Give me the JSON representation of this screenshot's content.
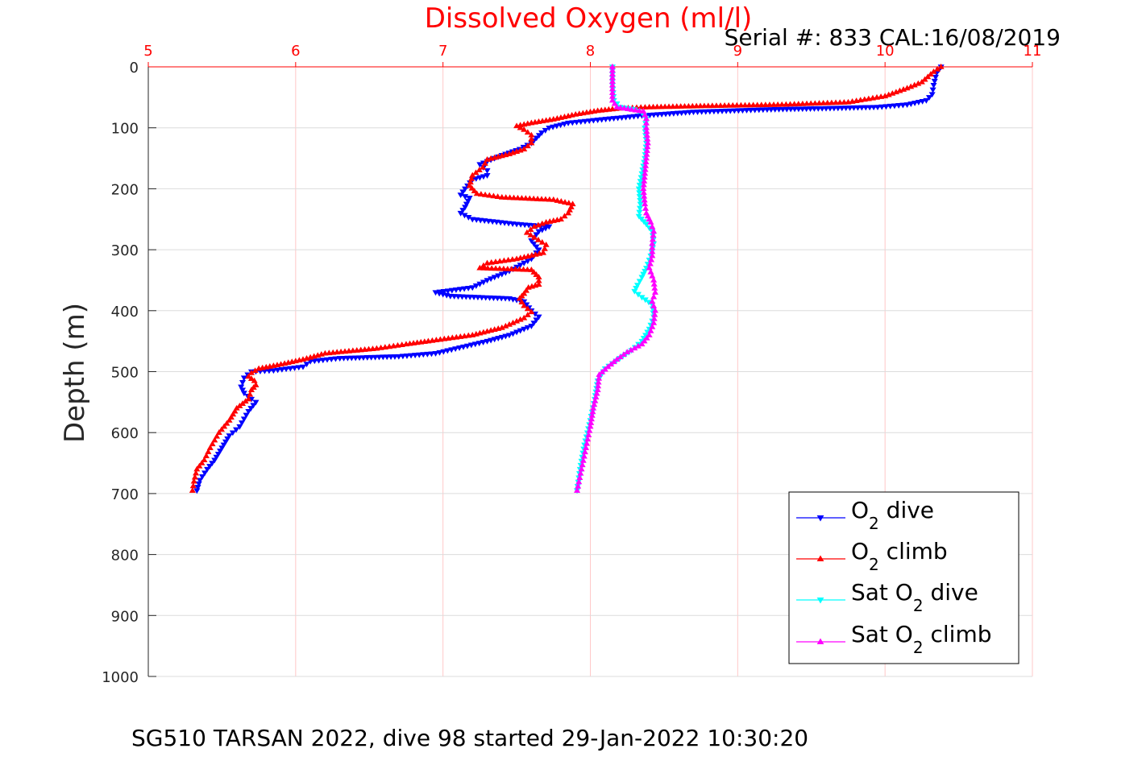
{
  "chart_data": {
    "type": "line",
    "title": "Dissolved Oxygen (ml/l)",
    "serial_label": "Serial #: 833  CAL:16/08/2019",
    "caption": "SG510 TARSAN 2022, dive 98 started 29-Jan-2022 10:30:20",
    "ylabel": "Depth (m)",
    "xlim": [
      5,
      11
    ],
    "ylim": [
      0,
      1000
    ],
    "y_reversed": true,
    "x_axis_position": "top",
    "x_ticks": [
      "5",
      "6",
      "7",
      "8",
      "9",
      "10",
      "11"
    ],
    "y_ticks": [
      "0",
      "100",
      "200",
      "300",
      "400",
      "500",
      "600",
      "700",
      "800",
      "900",
      "1000"
    ],
    "grid": true,
    "legend_position": "bottom-right",
    "colors": {
      "title": "#ff0000",
      "x_ticks": "#ff0000",
      "x_grid": "#ffc8c8",
      "y_grid": "#dcdcdc"
    },
    "series": [
      {
        "legend_prefix": "O",
        "legend_sub": "2",
        "legend_suffix": " dive",
        "color": "#0000ff",
        "marker": "triangle-down",
        "points": [
          [
            10.38,
            0
          ],
          [
            10.35,
            10
          ],
          [
            10.33,
            30
          ],
          [
            10.32,
            45
          ],
          [
            10.28,
            55
          ],
          [
            10.15,
            62
          ],
          [
            9.95,
            66
          ],
          [
            9.6,
            68
          ],
          [
            9.2,
            70
          ],
          [
            8.7,
            74
          ],
          [
            8.35,
            80
          ],
          [
            8.05,
            87
          ],
          [
            7.85,
            92
          ],
          [
            7.72,
            100
          ],
          [
            7.67,
            108
          ],
          [
            7.6,
            125
          ],
          [
            7.52,
            135
          ],
          [
            7.4,
            145
          ],
          [
            7.3,
            155
          ],
          [
            7.25,
            160
          ],
          [
            7.3,
            170
          ],
          [
            7.3,
            178
          ],
          [
            7.2,
            185
          ],
          [
            7.15,
            200
          ],
          [
            7.12,
            210
          ],
          [
            7.18,
            215
          ],
          [
            7.15,
            230
          ],
          [
            7.12,
            240
          ],
          [
            7.2,
            250
          ],
          [
            7.5,
            258
          ],
          [
            7.72,
            262
          ],
          [
            7.65,
            270
          ],
          [
            7.6,
            285
          ],
          [
            7.65,
            300
          ],
          [
            7.6,
            315
          ],
          [
            7.45,
            335
          ],
          [
            7.3,
            350
          ],
          [
            7.2,
            362
          ],
          [
            6.95,
            370
          ],
          [
            7.05,
            376
          ],
          [
            7.45,
            380
          ],
          [
            7.55,
            385
          ],
          [
            7.6,
            400
          ],
          [
            7.65,
            410
          ],
          [
            7.6,
            425
          ],
          [
            7.45,
            440
          ],
          [
            7.3,
            450
          ],
          [
            6.95,
            470
          ],
          [
            6.7,
            475
          ],
          [
            6.3,
            478
          ],
          [
            6.1,
            483
          ],
          [
            6.05,
            492
          ],
          [
            5.85,
            498
          ],
          [
            5.7,
            500
          ],
          [
            5.65,
            510
          ],
          [
            5.63,
            525
          ],
          [
            5.65,
            535
          ],
          [
            5.7,
            545
          ],
          [
            5.73,
            550
          ],
          [
            5.68,
            565
          ],
          [
            5.62,
            590
          ],
          [
            5.55,
            605
          ],
          [
            5.5,
            625
          ],
          [
            5.45,
            645
          ],
          [
            5.4,
            660
          ],
          [
            5.35,
            678
          ],
          [
            5.33,
            695
          ]
        ]
      },
      {
        "legend_prefix": "O",
        "legend_sub": "2",
        "legend_suffix": " climb",
        "color": "#ff0000",
        "marker": "triangle-up",
        "points": [
          [
            10.38,
            0
          ],
          [
            10.33,
            8
          ],
          [
            10.25,
            25
          ],
          [
            10.15,
            35
          ],
          [
            10.0,
            48
          ],
          [
            9.75,
            58
          ],
          [
            9.3,
            62
          ],
          [
            8.8,
            64
          ],
          [
            8.4,
            66
          ],
          [
            8.2,
            68
          ],
          [
            8.05,
            72
          ],
          [
            7.9,
            78
          ],
          [
            7.75,
            86
          ],
          [
            7.6,
            92
          ],
          [
            7.5,
            97
          ],
          [
            7.55,
            103
          ],
          [
            7.6,
            112
          ],
          [
            7.6,
            125
          ],
          [
            7.55,
            135
          ],
          [
            7.45,
            143
          ],
          [
            7.3,
            152
          ],
          [
            7.27,
            165
          ],
          [
            7.2,
            178
          ],
          [
            7.18,
            195
          ],
          [
            7.23,
            208
          ],
          [
            7.4,
            214
          ],
          [
            7.75,
            218
          ],
          [
            7.88,
            225
          ],
          [
            7.85,
            240
          ],
          [
            7.8,
            250
          ],
          [
            7.7,
            255
          ],
          [
            7.62,
            262
          ],
          [
            7.57,
            272
          ],
          [
            7.62,
            280
          ],
          [
            7.7,
            292
          ],
          [
            7.68,
            305
          ],
          [
            7.5,
            315
          ],
          [
            7.3,
            322
          ],
          [
            7.25,
            330
          ],
          [
            7.6,
            333
          ],
          [
            7.65,
            345
          ],
          [
            7.65,
            357
          ],
          [
            7.58,
            362
          ],
          [
            7.55,
            372
          ],
          [
            7.52,
            380
          ],
          [
            7.55,
            392
          ],
          [
            7.6,
            402
          ],
          [
            7.55,
            412
          ],
          [
            7.4,
            428
          ],
          [
            7.2,
            440
          ],
          [
            6.9,
            450
          ],
          [
            6.75,
            455
          ],
          [
            6.55,
            462
          ],
          [
            6.2,
            470
          ],
          [
            6.05,
            480
          ],
          [
            5.9,
            488
          ],
          [
            5.75,
            495
          ],
          [
            5.7,
            502
          ],
          [
            5.68,
            508
          ],
          [
            5.72,
            515
          ],
          [
            5.73,
            522
          ],
          [
            5.7,
            530
          ],
          [
            5.68,
            545
          ],
          [
            5.6,
            560
          ],
          [
            5.55,
            580
          ],
          [
            5.48,
            600
          ],
          [
            5.42,
            625
          ],
          [
            5.38,
            645
          ],
          [
            5.33,
            660
          ],
          [
            5.31,
            680
          ],
          [
            5.3,
            695
          ]
        ]
      },
      {
        "legend_prefix": "Sat O",
        "legend_sub": "2",
        "legend_suffix": " dive",
        "color": "#00ffff",
        "marker": "triangle-down",
        "points": [
          [
            8.15,
            0
          ],
          [
            8.15,
            30
          ],
          [
            8.16,
            55
          ],
          [
            8.2,
            66
          ],
          [
            8.3,
            70
          ],
          [
            8.35,
            75
          ],
          [
            8.38,
            85
          ],
          [
            8.37,
            100
          ],
          [
            8.38,
            125
          ],
          [
            8.37,
            150
          ],
          [
            8.35,
            175
          ],
          [
            8.33,
            200
          ],
          [
            8.34,
            225
          ],
          [
            8.33,
            245
          ],
          [
            8.38,
            258
          ],
          [
            8.42,
            270
          ],
          [
            8.43,
            290
          ],
          [
            8.41,
            310
          ],
          [
            8.38,
            330
          ],
          [
            8.35,
            345
          ],
          [
            8.32,
            358
          ],
          [
            8.3,
            368
          ],
          [
            8.35,
            378
          ],
          [
            8.42,
            390
          ],
          [
            8.43,
            410
          ],
          [
            8.4,
            430
          ],
          [
            8.35,
            450
          ],
          [
            8.28,
            465
          ],
          [
            8.2,
            478
          ],
          [
            8.1,
            495
          ],
          [
            8.05,
            515
          ],
          [
            8.03,
            545
          ],
          [
            8.0,
            580
          ],
          [
            7.96,
            620
          ],
          [
            7.93,
            660
          ],
          [
            7.91,
            695
          ]
        ]
      },
      {
        "legend_prefix": "Sat O",
        "legend_sub": "2",
        "legend_suffix": " climb",
        "color": "#ff00ff",
        "marker": "triangle-up",
        "points": [
          [
            8.15,
            0
          ],
          [
            8.15,
            30
          ],
          [
            8.15,
            55
          ],
          [
            8.18,
            66
          ],
          [
            8.28,
            70
          ],
          [
            8.36,
            73
          ],
          [
            8.38,
            85
          ],
          [
            8.38,
            100
          ],
          [
            8.39,
            125
          ],
          [
            8.38,
            150
          ],
          [
            8.37,
            175
          ],
          [
            8.36,
            200
          ],
          [
            8.37,
            225
          ],
          [
            8.38,
            240
          ],
          [
            8.41,
            255
          ],
          [
            8.43,
            270
          ],
          [
            8.42,
            290
          ],
          [
            8.42,
            310
          ],
          [
            8.4,
            330
          ],
          [
            8.43,
            350
          ],
          [
            8.44,
            370
          ],
          [
            8.42,
            385
          ],
          [
            8.44,
            400
          ],
          [
            8.43,
            420
          ],
          [
            8.4,
            440
          ],
          [
            8.35,
            455
          ],
          [
            8.25,
            468
          ],
          [
            8.18,
            480
          ],
          [
            8.12,
            492
          ],
          [
            8.06,
            505
          ],
          [
            8.05,
            530
          ],
          [
            8.02,
            560
          ],
          [
            8.0,
            590
          ],
          [
            7.97,
            625
          ],
          [
            7.94,
            660
          ],
          [
            7.91,
            695
          ]
        ]
      }
    ]
  }
}
